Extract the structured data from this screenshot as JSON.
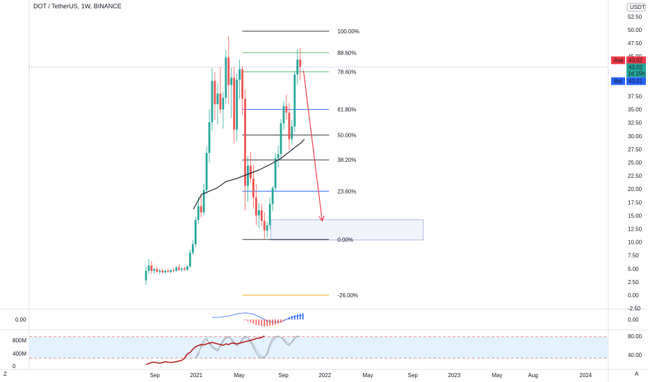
{
  "header": {
    "title": "DOT / TetherUS, 1W, BINANCE",
    "currency": "USDT"
  },
  "colors": {
    "up": "#26a69a",
    "down": "#ef5350",
    "fib_green": "#4caf50",
    "fib_blue": "#2962ff",
    "fib_black": "#131722",
    "fib_orange": "#f5a623",
    "arrow": "#f23645",
    "ask": "#f23645",
    "bid": "#2962ff",
    "last": "#26a69a",
    "price_line": "#5b6bd6",
    "rsi_band": "#e3f2fd",
    "osc_line": "#9598a1"
  },
  "chart_data": {
    "type": "candlestick",
    "symbol": "DOT / TetherUS",
    "interval": "1W",
    "exchange": "BINANCE",
    "y_axis": {
      "range": [
        -2.5,
        52.5
      ],
      "ticks": [
        "52.50",
        "50.00",
        "47.50",
        "45.00",
        "42.50",
        "40.00",
        "37.50",
        "35.00",
        "32.50",
        "30.00",
        "27.50",
        "25.00",
        "22.50",
        "20.00",
        "17.50",
        "15.00",
        "12.50",
        "10.00",
        "7.50",
        "5.00",
        "2.50",
        "0.00",
        "-2.50"
      ]
    },
    "x_axis": {
      "ticks": [
        "Sep",
        "2021",
        "May",
        "Sep",
        "2022",
        "May",
        "Sep",
        "2023",
        "May",
        "Aug",
        "2024"
      ]
    },
    "price_labels": {
      "ask_label": "Ask",
      "ask": "43.02",
      "last": "43.02",
      "countdown": "1d 15h",
      "bid_label": "Bid",
      "bid": "43.01"
    },
    "fibonacci": [
      {
        "label": "100.00%",
        "price": 49.75
      },
      {
        "label": "88.60%",
        "price": 45.7
      },
      {
        "label": "78.60%",
        "price": 42.1
      },
      {
        "label": "61.80%",
        "price": 35.0
      },
      {
        "label": "50.00%",
        "price": 30.2
      },
      {
        "label": "38.20%",
        "price": 25.5
      },
      {
        "label": "23.60%",
        "price": 19.6
      },
      {
        "label": "0.00%",
        "price": 10.5
      },
      {
        "label": "-26.00%",
        "price": 0.0
      }
    ],
    "candles": [
      [
        2.8,
        5.4,
        2.0,
        4.6
      ],
      [
        4.6,
        6.8,
        4.0,
        5.6
      ],
      [
        5.6,
        6.4,
        4.0,
        4.6
      ],
      [
        4.6,
        5.2,
        4.0,
        4.9
      ],
      [
        4.9,
        5.4,
        4.2,
        4.4
      ],
      [
        4.4,
        5.0,
        4.0,
        4.6
      ],
      [
        4.6,
        5.0,
        4.1,
        4.3
      ],
      [
        4.3,
        4.8,
        4.0,
        4.6
      ],
      [
        4.6,
        5.0,
        4.2,
        4.4
      ],
      [
        4.4,
        4.9,
        4.1,
        4.7
      ],
      [
        4.7,
        5.1,
        4.3,
        4.6
      ],
      [
        4.6,
        5.5,
        4.4,
        5.2
      ],
      [
        5.2,
        5.8,
        4.6,
        4.8
      ],
      [
        4.8,
        5.2,
        4.4,
        5.0
      ],
      [
        5.0,
        5.4,
        4.6,
        4.8
      ],
      [
        4.8,
        5.6,
        4.6,
        5.4
      ],
      [
        5.4,
        8.6,
        5.2,
        8.0
      ],
      [
        8.0,
        10.4,
        7.6,
        9.6
      ],
      [
        9.6,
        14.8,
        9.0,
        14.2
      ],
      [
        14.2,
        18.6,
        13.4,
        16.8
      ],
      [
        16.8,
        19.0,
        14.6,
        15.6
      ],
      [
        15.6,
        21.0,
        15.0,
        19.8
      ],
      [
        19.8,
        28.0,
        19.0,
        26.8
      ],
      [
        26.8,
        35.0,
        25.0,
        32.6
      ],
      [
        32.6,
        42.8,
        31.0,
        40.4
      ],
      [
        40.4,
        42.0,
        33.0,
        36.0
      ],
      [
        36.0,
        40.0,
        32.2,
        38.0
      ],
      [
        38.0,
        43.0,
        34.2,
        35.0
      ],
      [
        35.0,
        38.4,
        31.4,
        37.2
      ],
      [
        37.2,
        46.2,
        36.0,
        44.8
      ],
      [
        44.8,
        48.8,
        36.0,
        39.6
      ],
      [
        39.6,
        42.8,
        33.4,
        41.0
      ],
      [
        41.0,
        43.0,
        28.6,
        31.2
      ],
      [
        31.2,
        41.8,
        29.0,
        40.6
      ],
      [
        40.6,
        44.4,
        37.0,
        42.6
      ],
      [
        42.6,
        43.2,
        34.0,
        37.0
      ],
      [
        37.0,
        38.8,
        16.0,
        20.6
      ],
      [
        20.6,
        26.2,
        17.6,
        24.4
      ],
      [
        24.4,
        27.0,
        21.2,
        22.0
      ],
      [
        22.0,
        24.6,
        16.4,
        18.4
      ],
      [
        18.4,
        21.0,
        13.2,
        15.0
      ],
      [
        15.0,
        17.4,
        12.6,
        16.0
      ],
      [
        16.0,
        17.2,
        13.0,
        14.0
      ],
      [
        14.0,
        15.6,
        10.6,
        12.2
      ],
      [
        12.2,
        13.8,
        10.8,
        13.2
      ],
      [
        13.2,
        18.4,
        12.4,
        17.2
      ],
      [
        17.2,
        20.6,
        15.8,
        20.2
      ],
      [
        20.2,
        26.8,
        19.6,
        25.8
      ],
      [
        25.8,
        28.2,
        24.2,
        26.6
      ],
      [
        26.6,
        33.2,
        25.6,
        32.4
      ],
      [
        32.4,
        36.6,
        31.2,
        35.6
      ],
      [
        35.6,
        37.8,
        33.0,
        34.4
      ],
      [
        34.4,
        36.2,
        27.4,
        29.4
      ],
      [
        29.4,
        33.0,
        28.4,
        31.8
      ],
      [
        31.8,
        42.2,
        30.8,
        41.6
      ],
      [
        41.6,
        46.4,
        39.6,
        44.4
      ],
      [
        44.4,
        46.6,
        40.6,
        43.02
      ]
    ],
    "moving_average": [
      [
        17.2,
        16.2
      ],
      [
        20.2,
        19.0
      ],
      [
        25.8,
        20.2
      ],
      [
        29.0,
        21.4
      ],
      [
        33.0,
        22.0
      ],
      [
        37.0,
        22.8
      ],
      [
        41.0,
        23.6
      ],
      [
        45.0,
        24.6
      ],
      [
        49.0,
        25.8
      ],
      [
        53.0,
        27.4
      ],
      [
        56.5,
        28.8
      ],
      [
        57.5,
        29.4
      ]
    ],
    "target_zone": {
      "start_bar": 45.3,
      "end_bar": 100.7,
      "top": 14.2,
      "bottom": 10.4
    },
    "projection_arrow": {
      "from_bar": 57.2,
      "from_price": 42.3,
      "to_bar": 64.0,
      "to_price": 14.0
    },
    "oscillator_macd": {
      "zero_label": "0.00",
      "line": [
        0.3,
        0.3,
        0.3,
        0.35,
        0.4,
        0.45,
        0.5,
        0.6,
        0.7,
        0.8,
        0.85,
        0.9,
        0.95,
        0.9,
        0.85,
        0.8,
        0.6,
        0.4,
        0.2,
        0.0,
        -0.2,
        -0.3,
        -0.35,
        -0.4,
        -0.35,
        -0.3,
        -0.2,
        0.0,
        0.2,
        0.35,
        0.45,
        0.5,
        0.55,
        0.58
      ],
      "line_start_bar": 24,
      "histogram": [
        -0.1,
        -0.2,
        -0.35,
        -0.5,
        -0.65,
        -0.7,
        -0.8,
        -0.85,
        -0.8,
        -0.75,
        -0.7,
        -0.6,
        -0.5,
        -0.4,
        -0.2,
        0.1,
        0.25,
        0.4,
        0.5,
        0.6,
        0.7,
        0.75
      ],
      "histogram_start_bar": 36
    },
    "oscillator_rsi": {
      "left_ticks": [
        "800M",
        "400M",
        "0"
      ],
      "right_ticks": [
        "80.00",
        "40.00"
      ],
      "band": [
        20,
        80
      ],
      "stoch_k": [
        20,
        30,
        55,
        70,
        75,
        62,
        50,
        45,
        40,
        55,
        70,
        78,
        80,
        72,
        60,
        55,
        62,
        75,
        82,
        78,
        65,
        50,
        35,
        25,
        20,
        22,
        35,
        60,
        75,
        80,
        82,
        78,
        70,
        60,
        55,
        65,
        78,
        82,
        80
      ],
      "stoch_d": [
        25,
        35,
        50,
        62,
        70,
        65,
        55,
        48,
        45,
        52,
        65,
        74,
        78,
        74,
        65,
        58,
        60,
        70,
        78,
        78,
        70,
        58,
        45,
        33,
        26,
        24,
        30,
        50,
        68,
        76,
        80,
        79,
        74,
        66,
        60,
        63,
        74,
        80,
        80
      ],
      "stoch_start_bar": 18,
      "strength": [
        2,
        5,
        8,
        9,
        7,
        6,
        8,
        10,
        9,
        8,
        9,
        10,
        12,
        14,
        20,
        32,
        36,
        45,
        52,
        55,
        58,
        57,
        60,
        62,
        64,
        62,
        60,
        58,
        56,
        60,
        58,
        62,
        62,
        60,
        62,
        64,
        66,
        68,
        70,
        72,
        75,
        76,
        78,
        82
      ],
      "strength_start_bar": 0
    }
  },
  "left_axis": {
    "scale_mode": "Z"
  },
  "right_axis": {
    "auto_label": "A"
  }
}
